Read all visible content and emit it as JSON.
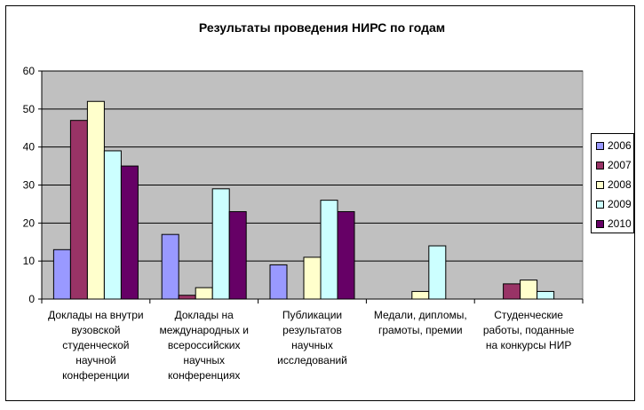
{
  "chart_data": {
    "type": "bar",
    "title": "Результаты проведения НИРС по годам",
    "xlabel": "",
    "ylabel": "",
    "ylim": [
      0,
      60
    ],
    "yticks": [
      "0",
      "10",
      "20",
      "30",
      "40",
      "50",
      "60"
    ],
    "grid": true,
    "legend_position": "right",
    "categories": [
      [
        "Доклады на внутри",
        "вузовской",
        "студенческой",
        "научной",
        "конференции"
      ],
      [
        "Доклады на",
        "международных и",
        "всероссийских",
        "научных",
        "конференциях"
      ],
      [
        "Публикации",
        "результатов",
        "научных",
        "исследований"
      ],
      [
        "Медали, дипломы,",
        "грамоты, премии"
      ],
      [
        "Студенческие",
        "работы, поданные",
        "на конкурсы НИР"
      ]
    ],
    "series": [
      {
        "name": "2006",
        "color": "#9999ff",
        "values": [
          13,
          17,
          9,
          0,
          0
        ]
      },
      {
        "name": "2007",
        "color": "#993366",
        "values": [
          47,
          1,
          0,
          0,
          4
        ]
      },
      {
        "name": "2008",
        "color": "#ffffcc",
        "values": [
          52,
          3,
          11,
          2,
          5
        ]
      },
      {
        "name": "2009",
        "color": "#ccffff",
        "values": [
          39,
          29,
          26,
          14,
          2
        ]
      },
      {
        "name": "2010",
        "color": "#660066",
        "values": [
          35,
          23,
          23,
          0,
          0
        ]
      }
    ],
    "plot_background": "#c0c0c0"
  }
}
